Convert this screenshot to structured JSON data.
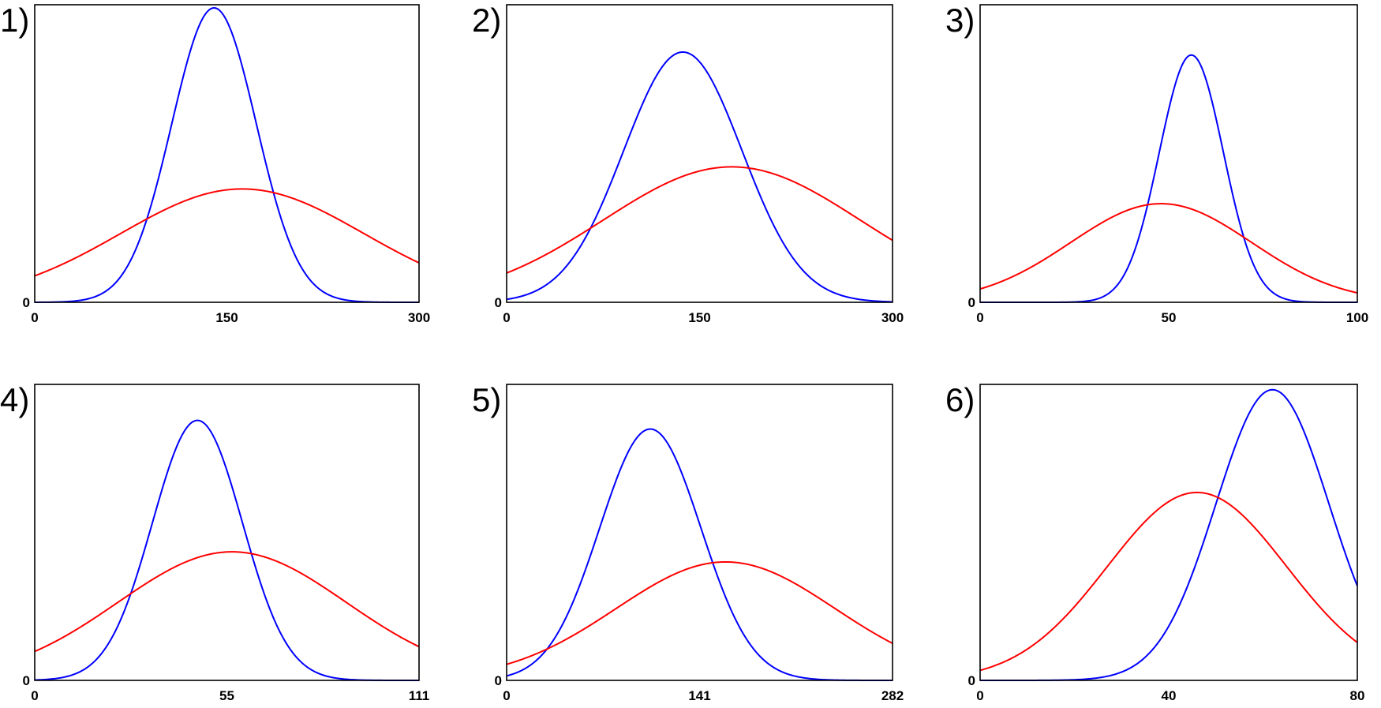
{
  "chart_data": [
    {
      "panel_label": "1)",
      "type": "line",
      "xlim": [
        0,
        300
      ],
      "ylim": [
        0,
        1
      ],
      "xticks": [
        "0",
        "150",
        "300"
      ],
      "yticks": [
        "0"
      ],
      "series": [
        {
          "color": "#0000ff",
          "peak_x": 140,
          "peak_y": 1.0,
          "sigma": 33
        },
        {
          "color": "#ff0000",
          "peak_x": 162,
          "peak_y": 0.385,
          "sigma": 95
        }
      ]
    },
    {
      "panel_label": "2)",
      "type": "line",
      "xlim": [
        0,
        300
      ],
      "ylim": [
        0,
        1
      ],
      "xticks": [
        "0",
        "150",
        "300"
      ],
      "yticks": [
        "0"
      ],
      "series": [
        {
          "color": "#0000ff",
          "peak_x": 137,
          "peak_y": 0.85,
          "sigma": 46
        },
        {
          "color": "#ff0000",
          "peak_x": 175,
          "peak_y": 0.46,
          "sigma": 100
        }
      ]
    },
    {
      "panel_label": "3)",
      "type": "line",
      "xlim": [
        0,
        100
      ],
      "ylim": [
        0,
        1
      ],
      "xticks": [
        "0",
        "50",
        "100"
      ],
      "yticks": [
        "0"
      ],
      "series": [
        {
          "color": "#0000ff",
          "peak_x": 56,
          "peak_y": 0.84,
          "sigma": 8.5
        },
        {
          "color": "#ff0000",
          "peak_x": 48,
          "peak_y": 0.335,
          "sigma": 24
        }
      ]
    },
    {
      "panel_label": "4)",
      "type": "line",
      "xlim": [
        0,
        111
      ],
      "ylim": [
        0,
        1
      ],
      "xticks": [
        "0",
        "55",
        "111"
      ],
      "yticks": [
        "0"
      ],
      "series": [
        {
          "color": "#0000ff",
          "peak_x": 47,
          "peak_y": 0.9,
          "sigma": 13
        },
        {
          "color": "#ff0000",
          "peak_x": 57,
          "peak_y": 0.445,
          "sigma": 33
        }
      ]
    },
    {
      "panel_label": "5)",
      "type": "line",
      "xlim": [
        0,
        282
      ],
      "ylim": [
        0,
        1
      ],
      "xticks": [
        "0",
        "141",
        "282"
      ],
      "yticks": [
        "0"
      ],
      "series": [
        {
          "color": "#0000ff",
          "peak_x": 105,
          "peak_y": 0.87,
          "sigma": 37
        },
        {
          "color": "#ff0000",
          "peak_x": 160,
          "peak_y": 0.41,
          "sigma": 80
        }
      ]
    },
    {
      "panel_label": "6)",
      "type": "line",
      "xlim": [
        0,
        80
      ],
      "ylim": [
        0,
        1
      ],
      "xticks": [
        "0",
        "40",
        "80"
      ],
      "yticks": [
        "0"
      ],
      "series": [
        {
          "color": "#0000ff",
          "peak_x": 62,
          "peak_y": 0.99,
          "sigma": 12
        },
        {
          "color": "#ff0000",
          "peak_x": 46,
          "peak_y": 0.64,
          "sigma": 19
        }
      ]
    }
  ]
}
